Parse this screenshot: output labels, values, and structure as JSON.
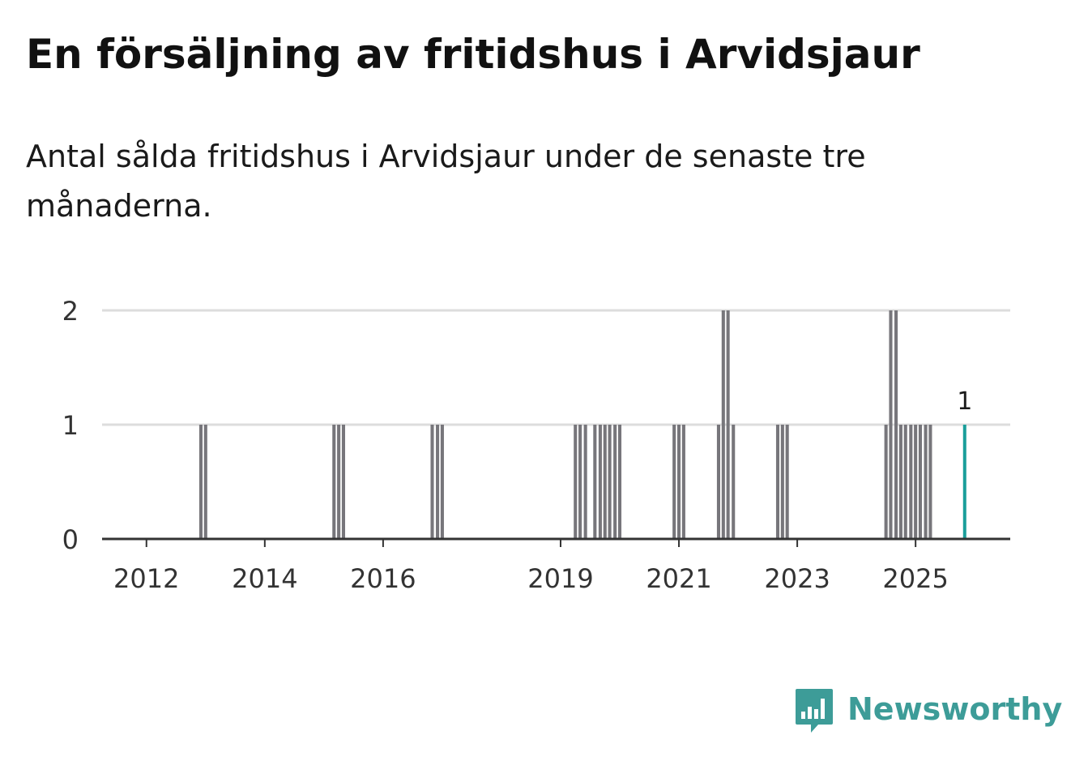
{
  "header": {
    "title": "En försäljning av fritidshus i Arvidsjaur",
    "subtitle": "Antal sålda fritidshus i Arvidsjaur under de senaste tre månaderna."
  },
  "chart_data": {
    "type": "bar",
    "title": "En försäljning av fritidshus i Arvidsjaur",
    "subtitle": "Antal sålda fritidshus i Arvidsjaur under de senaste tre månaderna.",
    "xlabel": "",
    "ylabel": "",
    "x_range": [
      2011.25,
      2026.6
    ],
    "ylim": [
      0,
      2
    ],
    "y_ticks": [
      0,
      1,
      2
    ],
    "x_ticks": [
      2012,
      2014,
      2016,
      2019,
      2021,
      2023,
      2025
    ],
    "grid": true,
    "bar_period_years": 0.0833,
    "colors": {
      "bar": "#77767b",
      "highlight": "#1a9e9a",
      "grid": "#dddddd",
      "axis": "#333333"
    },
    "series": [
      {
        "name": "Antal sålda fritidshus",
        "points": [
          {
            "x": 2012.92,
            "y": 1
          },
          {
            "x": 2013.0,
            "y": 1
          },
          {
            "x": 2015.17,
            "y": 1
          },
          {
            "x": 2015.25,
            "y": 1
          },
          {
            "x": 2015.33,
            "y": 1
          },
          {
            "x": 2016.83,
            "y": 1
          },
          {
            "x": 2016.92,
            "y": 1
          },
          {
            "x": 2017.0,
            "y": 1
          },
          {
            "x": 2019.25,
            "y": 1
          },
          {
            "x": 2019.33,
            "y": 1
          },
          {
            "x": 2019.42,
            "y": 1
          },
          {
            "x": 2019.58,
            "y": 1
          },
          {
            "x": 2019.67,
            "y": 1
          },
          {
            "x": 2019.75,
            "y": 1
          },
          {
            "x": 2019.83,
            "y": 1
          },
          {
            "x": 2019.92,
            "y": 1
          },
          {
            "x": 2020.0,
            "y": 1
          },
          {
            "x": 2020.92,
            "y": 1
          },
          {
            "x": 2021.0,
            "y": 1
          },
          {
            "x": 2021.08,
            "y": 1
          },
          {
            "x": 2021.67,
            "y": 1
          },
          {
            "x": 2021.75,
            "y": 2
          },
          {
            "x": 2021.83,
            "y": 2
          },
          {
            "x": 2021.92,
            "y": 1
          },
          {
            "x": 2022.67,
            "y": 1
          },
          {
            "x": 2022.75,
            "y": 1
          },
          {
            "x": 2022.83,
            "y": 1
          },
          {
            "x": 2024.5,
            "y": 1
          },
          {
            "x": 2024.58,
            "y": 2
          },
          {
            "x": 2024.67,
            "y": 2
          },
          {
            "x": 2024.75,
            "y": 1
          },
          {
            "x": 2024.83,
            "y": 1
          },
          {
            "x": 2024.92,
            "y": 1
          },
          {
            "x": 2025.0,
            "y": 1
          },
          {
            "x": 2025.08,
            "y": 1
          },
          {
            "x": 2025.17,
            "y": 1
          },
          {
            "x": 2025.25,
            "y": 1
          }
        ]
      }
    ],
    "highlight": {
      "x": 2025.83,
      "y": 1,
      "label": "1"
    }
  },
  "logo": {
    "text": "Newsworthy",
    "icon": "newsworthy-chart-bubble-icon",
    "color": "#3d9c98"
  }
}
